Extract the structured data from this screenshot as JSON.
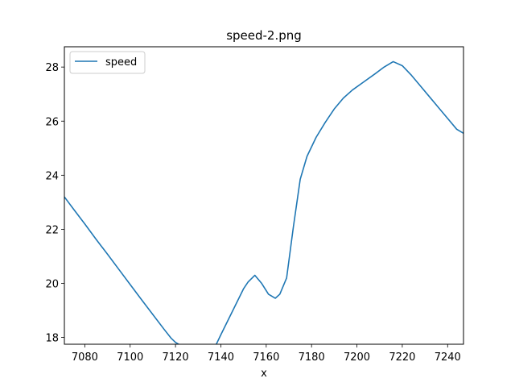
{
  "chart_data": {
    "type": "line",
    "title": "speed-2.png",
    "xlabel": "x",
    "ylabel": "",
    "xlim": [
      7071,
      7247
    ],
    "ylim": [
      17.75,
      28.75
    ],
    "xticks": [
      7080,
      7100,
      7120,
      7140,
      7160,
      7180,
      7200,
      7220,
      7240
    ],
    "yticks": [
      18,
      20,
      22,
      24,
      26,
      28
    ],
    "grid": false,
    "legend_position": "upper left",
    "series": [
      {
        "name": "speed",
        "color": "#1f77b4",
        "x": [
          7071,
          7075,
          7080,
          7085,
          7090,
          7095,
          7100,
          7105,
          7110,
          7115,
          7118,
          7120,
          7122,
          7124,
          7126,
          7128,
          7130,
          7132,
          7134,
          7136,
          7138,
          7140,
          7145,
          7150,
          7152,
          7155,
          7158,
          7161,
          7164,
          7166,
          7169,
          7172,
          7175,
          7178,
          7182,
          7186,
          7190,
          7194,
          7198,
          7203,
          7208,
          7212,
          7216,
          7220,
          7224,
          7228,
          7232,
          7236,
          7240,
          7244,
          7247
        ],
        "y": [
          23.2,
          22.75,
          22.2,
          21.63,
          21.08,
          20.52,
          19.96,
          19.4,
          18.85,
          18.3,
          17.98,
          17.82,
          17.72,
          17.68,
          17.65,
          17.63,
          17.6,
          17.55,
          17.5,
          17.55,
          17.75,
          18.1,
          18.95,
          19.8,
          20.05,
          20.3,
          20.0,
          19.6,
          19.45,
          19.6,
          20.2,
          22.1,
          23.85,
          24.7,
          25.4,
          25.95,
          26.45,
          26.85,
          27.15,
          27.45,
          27.75,
          28.0,
          28.2,
          28.05,
          27.7,
          27.3,
          26.9,
          26.5,
          26.1,
          25.7,
          25.55
        ]
      }
    ]
  }
}
